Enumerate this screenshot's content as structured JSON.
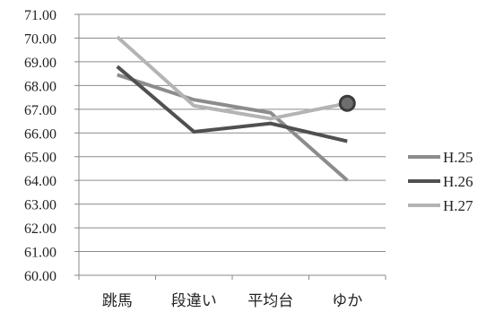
{
  "chart_data": {
    "type": "line",
    "title": "",
    "xlabel": "",
    "ylabel": "",
    "categories": [
      "跳馬",
      "段違い",
      "平均台",
      "ゆか"
    ],
    "ylim": [
      60.0,
      71.0
    ],
    "ytick_step": 1.0,
    "ytick_decimals": 2,
    "grid": "horizontal",
    "legend_position": "right",
    "series": [
      {
        "name": "H.25",
        "color": "#8c8c8c",
        "values": [
          68.45,
          67.4,
          66.85,
          64.0
        ]
      },
      {
        "name": "H.26",
        "color": "#505050",
        "values": [
          68.8,
          66.05,
          66.4,
          65.65
        ]
      },
      {
        "name": "H.27",
        "color": "#b4b4b4",
        "values": [
          70.05,
          67.15,
          66.6,
          67.25
        ]
      }
    ],
    "highlight": {
      "series": "H.27",
      "category": "ゆか",
      "value": 67.25,
      "fill": "#6e6e6e",
      "stroke": "#3c3c3c"
    }
  }
}
